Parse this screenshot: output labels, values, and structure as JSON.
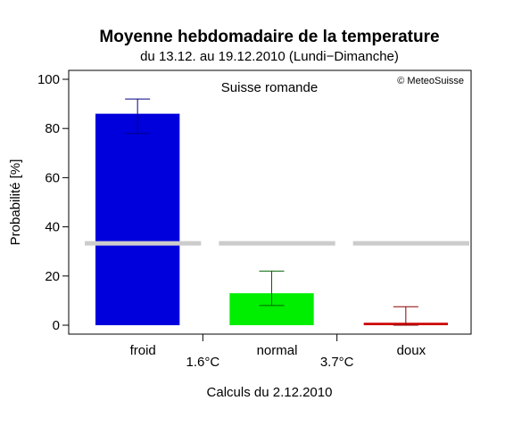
{
  "chart_data": {
    "type": "bar",
    "title": "Moyenne hebdomadaire de la temperature",
    "subtitle": "du 13.12. au 19.12.2010 (Lundi−Dimanche)",
    "region": "Suisse romande",
    "copyright": "© MeteoSuisse",
    "ylabel": "Probabilité [%]",
    "xlabel": "Calculs du 2.12.2010",
    "ylim": [
      0,
      100
    ],
    "yticks": [
      0,
      20,
      40,
      60,
      80,
      100
    ],
    "categories": [
      "froid",
      "normal",
      "doux"
    ],
    "values": [
      86,
      13,
      1
    ],
    "error_low": [
      78,
      8,
      0
    ],
    "error_high": [
      92,
      22,
      7.5
    ],
    "bar_colors": [
      "#0000dd",
      "#00ee00",
      "#cc0000"
    ],
    "error_colors": [
      "#000080",
      "#006400",
      "#8b0000"
    ],
    "climatology_line": 33.3,
    "climatology_color": "#cccccc",
    "thresholds": [
      "1.6°C",
      "3.7°C"
    ],
    "grid": false
  }
}
